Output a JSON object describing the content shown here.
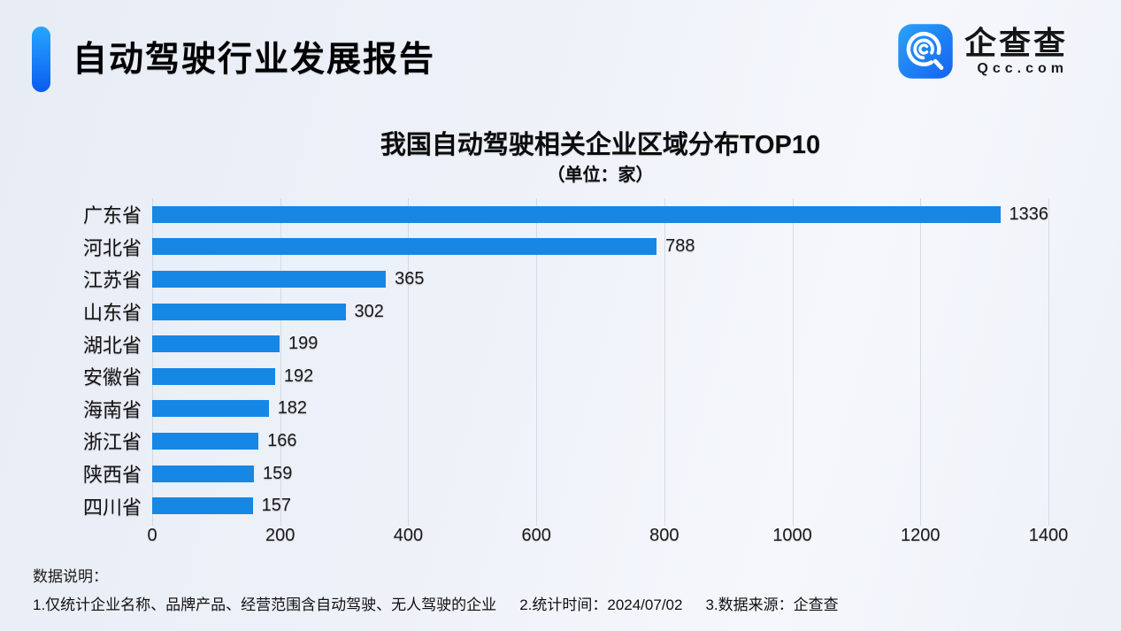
{
  "header": {
    "title": "自动驾驶行业发展报告",
    "logo": {
      "name": "企查查",
      "domain": "Qcc.com"
    }
  },
  "chart_data": {
    "type": "bar",
    "orientation": "horizontal",
    "title": "我国自动驾驶相关企业区域分布TOP10",
    "subtitle": "（单位：家）",
    "categories": [
      "广东省",
      "河北省",
      "江苏省",
      "山东省",
      "湖北省",
      "安徽省",
      "海南省",
      "浙江省",
      "陕西省",
      "四川省"
    ],
    "values": [
      1336,
      788,
      365,
      302,
      199,
      192,
      182,
      166,
      159,
      157
    ],
    "xlabel": "",
    "ylabel": "",
    "xlim": [
      0,
      1400
    ],
    "xticks": [
      0,
      200,
      400,
      600,
      800,
      1000,
      1200,
      1400
    ],
    "grid": true,
    "bar_color": "#1787e6",
    "legend": "none"
  },
  "footer": {
    "label": "数据说明：",
    "notes": [
      "1.仅统计企业名称、品牌产品、经营范围含自动驾驶、无人驾驶的企业",
      "2.统计时间：2024/07/02",
      "3.数据来源：企查查"
    ]
  },
  "colors": {
    "accent_gradient_top": "#27a6ff",
    "accent_gradient_bottom": "#0b5bf0",
    "bar": "#1787e6",
    "background": "#edf1f8",
    "gridline": "#d5dae2"
  }
}
